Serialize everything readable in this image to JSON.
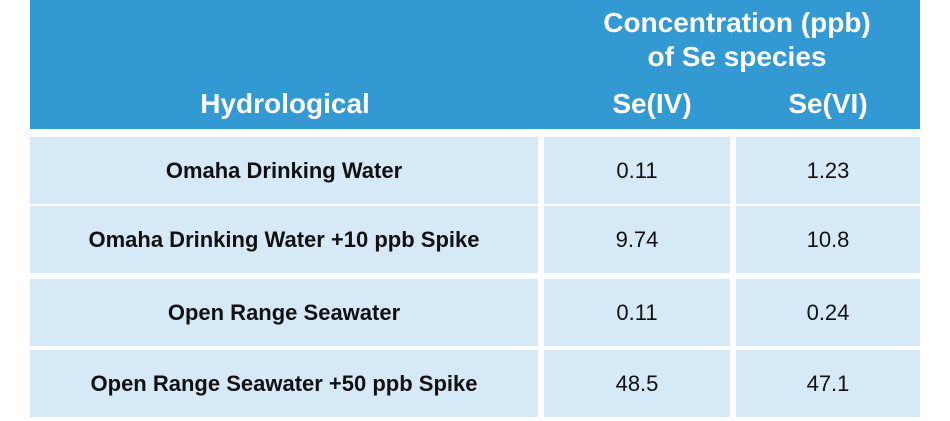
{
  "header": {
    "group_line1": "Concentration (ppb)",
    "group_line2": "of Se species",
    "col_hydrological": "Hydrological",
    "col_se4": "Se(IV)",
    "col_se6": "Se(VI)"
  },
  "rows": [
    {
      "name": "Omaha Drinking Water",
      "se4": "0.11",
      "se6": "1.23"
    },
    {
      "name": "Omaha Drinking Water +10 ppb Spike",
      "se4": "9.74",
      "se6": "10.8"
    },
    {
      "name": "Open Range Seawater",
      "se4": "0.11",
      "se6": "0.24"
    },
    {
      "name": "Open Range Seawater +50 ppb Spike",
      "se4": "48.5",
      "se6": "47.1"
    }
  ],
  "colors": {
    "header_bg": "#3399d3",
    "cell_bg": "#d6e9f6",
    "header_text": "#ffffff"
  }
}
